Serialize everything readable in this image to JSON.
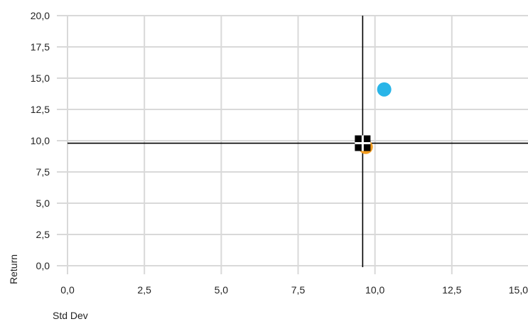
{
  "chart_data": {
    "type": "scatter",
    "xlabel": "Std Dev",
    "ylabel": "Return",
    "xlim": [
      0,
      15
    ],
    "ylim": [
      0,
      20
    ],
    "x_ticks": [
      "0,0",
      "2,5",
      "5,0",
      "7,5",
      "10,0",
      "12,5",
      "15,0"
    ],
    "y_ticks": [
      "0,0",
      "2,5",
      "5,0",
      "7,5",
      "10,0",
      "12,5",
      "15,0",
      "17,5",
      "20,0"
    ],
    "grid": true,
    "series": [
      {
        "x": [
          10.3
        ],
        "y": [
          14.1
        ],
        "color": "#29b5e8",
        "marker": "circle"
      },
      {
        "x": [
          9.7
        ],
        "y": [
          9.5
        ],
        "color": "#f39c1f",
        "marker": "circle"
      },
      {
        "x": [
          9.6
        ],
        "y": [
          9.8
        ],
        "color": "#000000",
        "marker": "square-cross"
      }
    ],
    "reference_lines": {
      "x": 9.6,
      "y": 9.8,
      "color": "#000000"
    }
  }
}
